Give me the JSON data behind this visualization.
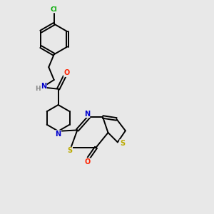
{
  "background_color": "#e8e8e8",
  "bond_color": "#000000",
  "atom_colors": {
    "N": "#0000cc",
    "O": "#ff2200",
    "S": "#bbaa00",
    "Cl": "#00aa00",
    "H": "#888888",
    "C": "#000000"
  },
  "figsize": [
    3.0,
    3.0
  ],
  "dpi": 100
}
